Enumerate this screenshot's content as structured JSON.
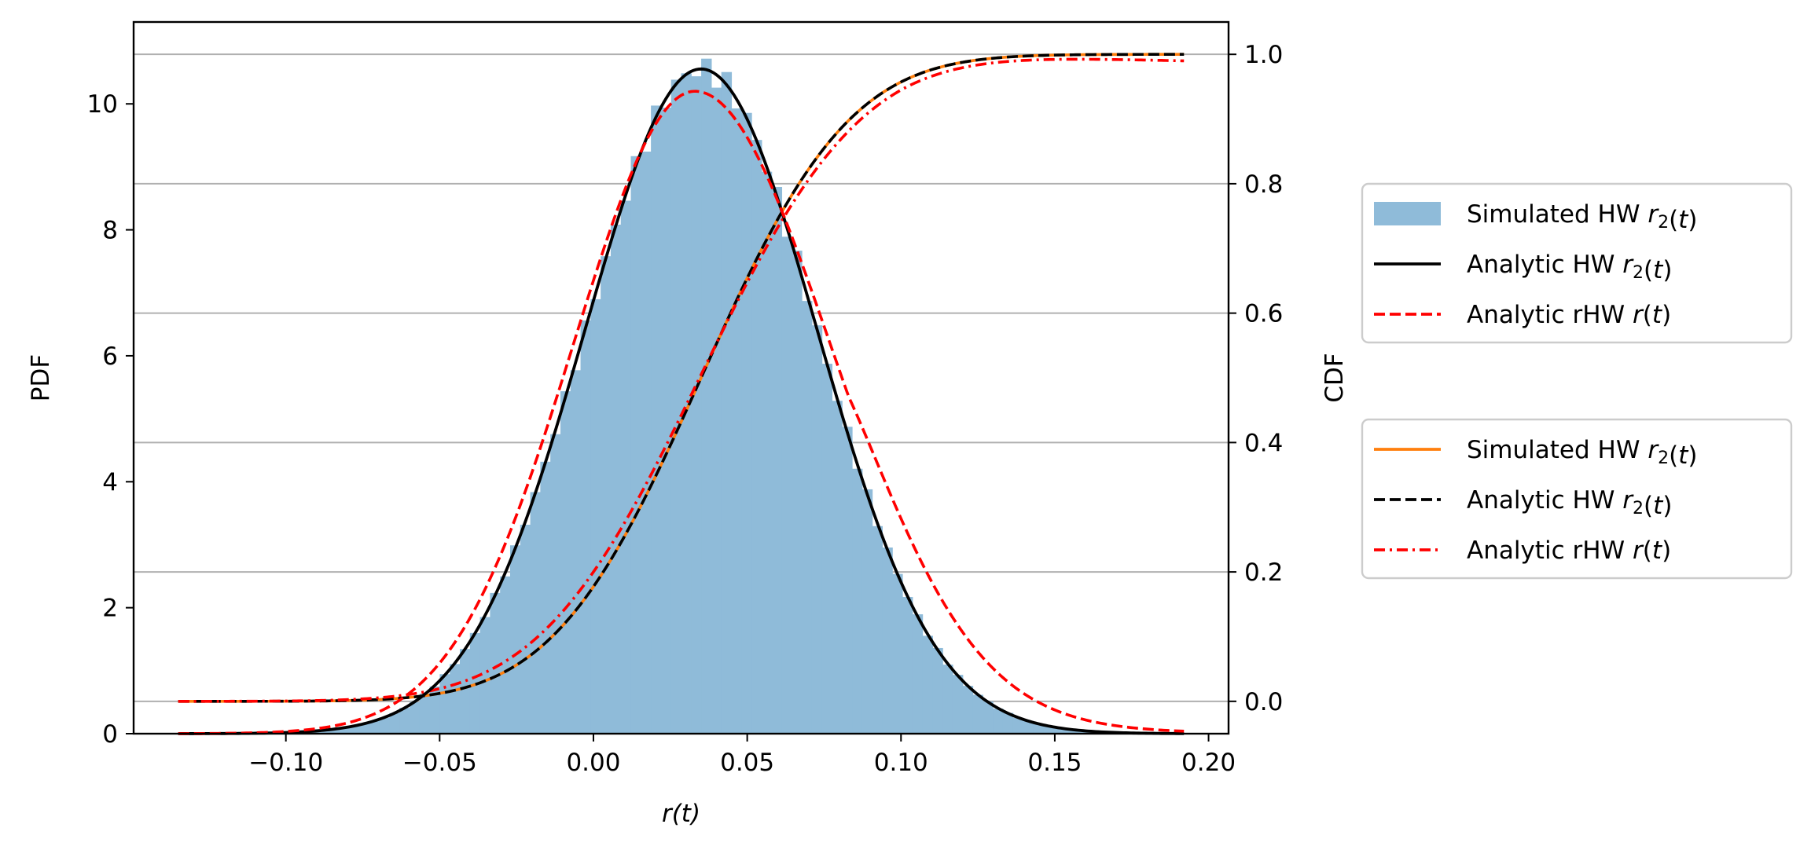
{
  "chart_data": {
    "type": "histogram+line",
    "x_axis": {
      "label": "r(t)",
      "lim": [
        -0.1495,
        0.2065
      ],
      "ticks": [
        -0.1,
        -0.05,
        0.0,
        0.05,
        0.1,
        0.15,
        0.2
      ],
      "tick_labels": [
        "−0.10",
        "−0.05",
        "0.00",
        "0.05",
        "0.10",
        "0.15",
        "0.20"
      ]
    },
    "y_axis_left": {
      "label": "PDF",
      "lim": [
        0,
        11.3
      ],
      "ticks": [
        0,
        2,
        4,
        6,
        8,
        10
      ],
      "tick_labels": [
        "0",
        "2",
        "4",
        "6",
        "8",
        "10"
      ]
    },
    "y_axis_right": {
      "label": "CDF",
      "lim": [
        -0.05,
        1.05
      ],
      "ticks": [
        0.0,
        0.2,
        0.4,
        0.6,
        0.8,
        1.0
      ],
      "tick_labels": [
        "0.0",
        "0.2",
        "0.4",
        "0.6",
        "0.8",
        "1.0"
      ]
    },
    "grid": "horizontal, right axis",
    "x_range": [
      -0.135,
      0.192
    ],
    "pdf_series": [
      {
        "name": "Simulated HW r2(t)",
        "kind": "histogram",
        "color": "#8fbbd9",
        "mean": 0.035,
        "std": 0.0378,
        "bins": 100
      },
      {
        "name": "Analytic HW r2(t)",
        "kind": "line",
        "style": "solid",
        "color": "#000000",
        "mean": 0.035,
        "std": 0.0378
      },
      {
        "name": "Analytic rHW r(t)",
        "kind": "line",
        "style": "dashed",
        "color": "#ff0000",
        "mode": 0.033,
        "peak": 10.2,
        "std_left": 0.0395,
        "std_right": 0.044,
        "tail_scale": 0.012
      }
    ],
    "cdf_series": [
      {
        "name": "Simulated HW r2(t)",
        "kind": "line",
        "style": "solid",
        "color": "#ff7f0e"
      },
      {
        "name": "Analytic HW r2(t)",
        "kind": "line",
        "style": "dashed",
        "color": "#000000"
      },
      {
        "name": "Analytic rHW r(t)",
        "kind": "line",
        "style": "dashdot",
        "color": "#ff0000",
        "end_value": 0.99
      }
    ]
  },
  "legend_pdf": [
    {
      "prefix": "Simulated HW ",
      "math": "r",
      "sub": "2",
      "suffix": "(t)",
      "marker": "patch",
      "color": "#8fbbd9"
    },
    {
      "prefix": "Analytic HW ",
      "math": "r",
      "sub": "2",
      "suffix": "(t)",
      "marker": "solid",
      "color": "#000000"
    },
    {
      "prefix": "Analytic rHW ",
      "math": "r",
      "sub": "",
      "suffix": "(t)",
      "marker": "dashed",
      "color": "#ff0000"
    }
  ],
  "legend_cdf": [
    {
      "prefix": "Simulated HW ",
      "math": "r",
      "sub": "2",
      "suffix": "(t)",
      "marker": "solid",
      "color": "#ff7f0e"
    },
    {
      "prefix": "Analytic HW ",
      "math": "r",
      "sub": "2",
      "suffix": "(t)",
      "marker": "dashed",
      "color": "#000000"
    },
    {
      "prefix": "Analytic rHW ",
      "math": "r",
      "sub": "",
      "suffix": "(t)",
      "marker": "dashdot",
      "color": "#ff0000"
    }
  ]
}
